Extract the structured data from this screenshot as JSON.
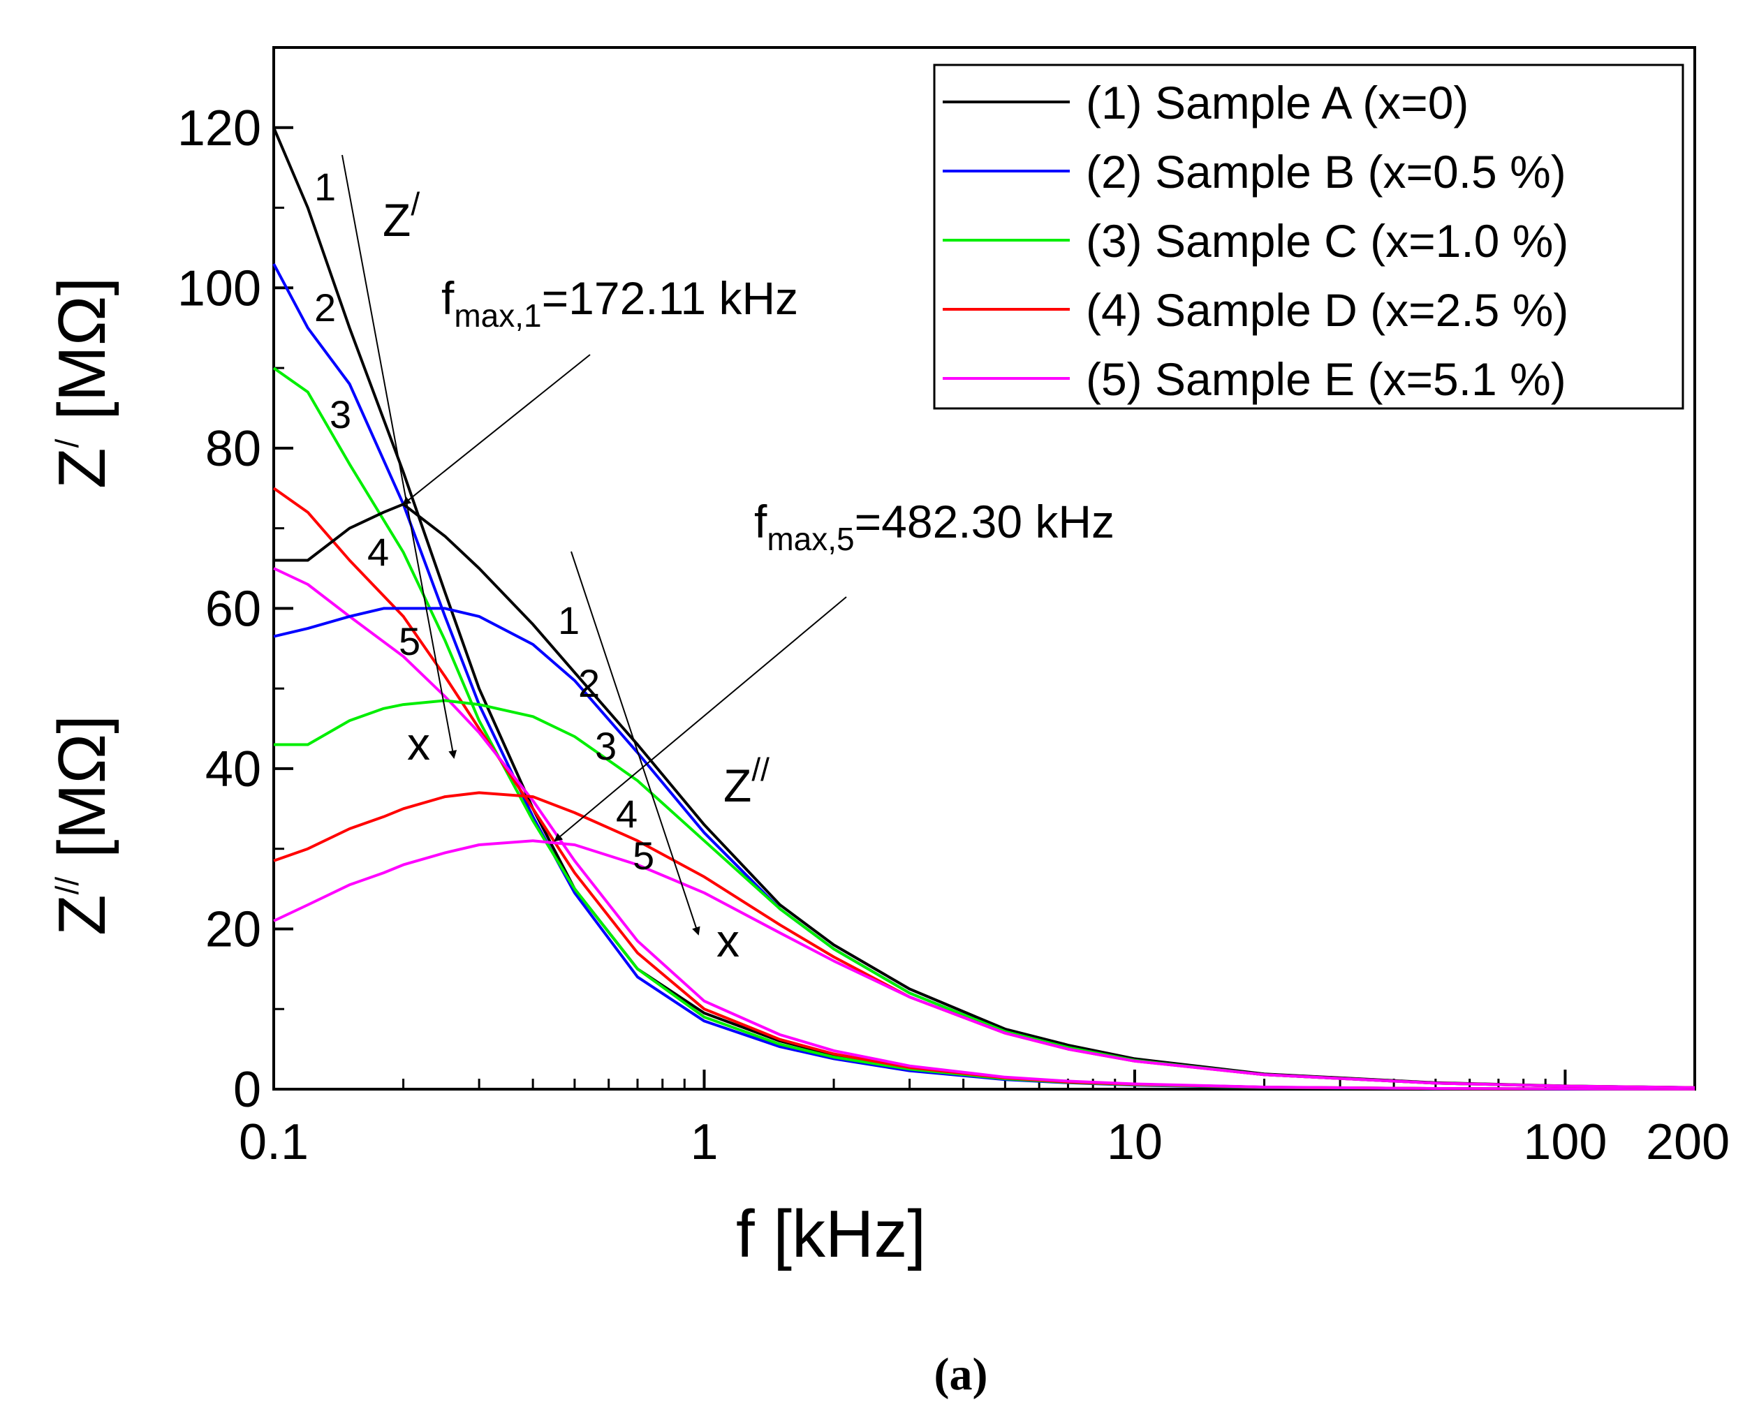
{
  "chart_data": {
    "type": "line",
    "xscale": "log",
    "xlim": [
      0.1,
      200
    ],
    "ylim": [
      0,
      130
    ],
    "xticks": [
      0.1,
      1,
      10,
      100,
      200
    ],
    "xtick_labels": [
      "0.1",
      "1",
      "10",
      "100",
      "200"
    ],
    "yticks": [
      0,
      20,
      40,
      60,
      80,
      100,
      120
    ],
    "ytick_labels": [
      "0",
      "20",
      "40",
      "60",
      "80",
      "100",
      "120"
    ],
    "xlabel": "f [kHz]",
    "ylabel_top": {
      "base": "Z",
      "sup": "/",
      "rest": " [MΩ]"
    },
    "ylabel_bottom": {
      "base": "Z",
      "sup": "//",
      "rest": " [MΩ]"
    },
    "legend_position": "top-right",
    "legend": [
      {
        "id": "A",
        "label": "(1) Sample A (x=0)",
        "color": "#000000"
      },
      {
        "id": "B",
        "label": "(2) Sample B (x=0.5 %)",
        "color": "#0000ff"
      },
      {
        "id": "C",
        "label": "(3) Sample C (x=1.0 %)",
        "color": "#00ee00"
      },
      {
        "id": "D",
        "label": "(4) Sample D (x=2.5 %)",
        "color": "#ff0000"
      },
      {
        "id": "E",
        "label": "(5) Sample E (x=5.1 %)",
        "color": "#ff00ff"
      }
    ],
    "series": [
      {
        "name": "Z' Sample A",
        "sample": "A",
        "quantity": "Z'",
        "x": [
          0.1,
          0.12,
          0.15,
          0.2,
          0.25,
          0.3,
          0.4,
          0.5,
          0.7,
          1,
          1.5,
          2,
          3,
          5,
          7,
          10,
          20,
          50,
          100,
          200
        ],
        "y": [
          120,
          110,
          95,
          77,
          62,
          50,
          35,
          25,
          15,
          9.5,
          6,
          4.3,
          2.7,
          1.4,
          0.9,
          0.6,
          0.25,
          0.08,
          0.04,
          0.02
        ]
      },
      {
        "name": "Z' Sample B",
        "sample": "B",
        "quantity": "Z'",
        "x": [
          0.1,
          0.12,
          0.15,
          0.2,
          0.25,
          0.3,
          0.4,
          0.5,
          0.7,
          1,
          1.5,
          2,
          3,
          5,
          7,
          10,
          20,
          50,
          100,
          200
        ],
        "y": [
          103,
          95,
          88,
          73,
          59,
          48,
          34,
          24.5,
          14,
          8.5,
          5.3,
          3.8,
          2.3,
          1.2,
          0.8,
          0.5,
          0.2,
          0.07,
          0.03,
          0.02
        ]
      },
      {
        "name": "Z' Sample C",
        "sample": "C",
        "quantity": "Z'",
        "x": [
          0.1,
          0.12,
          0.15,
          0.2,
          0.25,
          0.3,
          0.4,
          0.5,
          0.7,
          1,
          1.5,
          2,
          3,
          5,
          7,
          10,
          20,
          50,
          100,
          200
        ],
        "y": [
          90,
          87,
          78,
          67,
          56,
          46,
          33.5,
          25,
          15,
          9,
          5.6,
          4,
          2.5,
          1.3,
          0.85,
          0.55,
          0.22,
          0.08,
          0.04,
          0.02
        ]
      },
      {
        "name": "Z' Sample D",
        "sample": "D",
        "quantity": "Z'",
        "x": [
          0.1,
          0.12,
          0.15,
          0.2,
          0.25,
          0.3,
          0.4,
          0.5,
          0.7,
          1,
          1.5,
          2,
          3,
          5,
          7,
          10,
          20,
          50,
          100,
          200
        ],
        "y": [
          75,
          72,
          66,
          59,
          51.5,
          45,
          35,
          27,
          17,
          10,
          6.2,
          4.4,
          2.7,
          1.4,
          0.9,
          0.6,
          0.24,
          0.08,
          0.04,
          0.02
        ]
      },
      {
        "name": "Z' Sample E",
        "sample": "E",
        "quantity": "Z'",
        "x": [
          0.1,
          0.12,
          0.15,
          0.2,
          0.25,
          0.3,
          0.4,
          0.5,
          0.7,
          1,
          1.5,
          2,
          3,
          5,
          7,
          10,
          20,
          50,
          100,
          200
        ],
        "y": [
          65,
          63,
          59,
          54,
          49,
          44.5,
          36,
          28.5,
          18.5,
          11,
          6.8,
          4.8,
          2.9,
          1.5,
          1,
          0.65,
          0.26,
          0.09,
          0.04,
          0.02
        ]
      },
      {
        "name": "Z'' Sample A",
        "sample": "A",
        "quantity": "Z''",
        "x": [
          0.1,
          0.12,
          0.15,
          0.18,
          0.2,
          0.25,
          0.3,
          0.4,
          0.5,
          0.7,
          1,
          1.5,
          2,
          3,
          5,
          7,
          10,
          20,
          50,
          100,
          200
        ],
        "y": [
          66,
          66,
          70,
          72,
          73,
          69,
          65,
          58,
          52,
          43,
          33,
          23,
          18,
          12.5,
          7.5,
          5.5,
          3.8,
          1.9,
          0.8,
          0.4,
          0.2
        ]
      },
      {
        "name": "Z'' Sample B",
        "sample": "B",
        "quantity": "Z''",
        "x": [
          0.1,
          0.12,
          0.15,
          0.18,
          0.2,
          0.25,
          0.3,
          0.4,
          0.5,
          0.7,
          1,
          1.5,
          2,
          3,
          5,
          7,
          10,
          20,
          50,
          100,
          200
        ],
        "y": [
          56.5,
          57.5,
          59,
          60,
          60,
          60,
          59,
          55.5,
          51,
          42,
          32,
          22.5,
          17.5,
          12,
          7.2,
          5.2,
          3.6,
          1.8,
          0.75,
          0.38,
          0.19
        ]
      },
      {
        "name": "Z'' Sample C",
        "sample": "C",
        "quantity": "Z''",
        "x": [
          0.1,
          0.12,
          0.15,
          0.18,
          0.2,
          0.25,
          0.3,
          0.4,
          0.5,
          0.7,
          1,
          1.5,
          2,
          3,
          5,
          7,
          10,
          20,
          50,
          100,
          200
        ],
        "y": [
          43,
          43,
          46,
          47.5,
          48,
          48.5,
          48,
          46.5,
          44,
          38.5,
          31,
          22.5,
          17.5,
          12,
          7.2,
          5.2,
          3.6,
          1.8,
          0.75,
          0.38,
          0.19
        ]
      },
      {
        "name": "Z'' Sample D",
        "sample": "D",
        "quantity": "Z''",
        "x": [
          0.1,
          0.12,
          0.15,
          0.18,
          0.2,
          0.25,
          0.3,
          0.4,
          0.5,
          0.7,
          1,
          1.5,
          2,
          3,
          5,
          7,
          10,
          20,
          50,
          100,
          200
        ],
        "y": [
          28.5,
          30,
          32.5,
          34,
          35,
          36.5,
          37,
          36.5,
          34.5,
          31,
          26.5,
          20.5,
          16.5,
          11.5,
          7,
          5,
          3.5,
          1.8,
          0.75,
          0.38,
          0.19
        ]
      },
      {
        "name": "Z'' Sample E",
        "sample": "E",
        "quantity": "Z''",
        "x": [
          0.1,
          0.12,
          0.15,
          0.18,
          0.2,
          0.25,
          0.3,
          0.4,
          0.5,
          0.7,
          1,
          1.5,
          2,
          3,
          5,
          7,
          10,
          20,
          50,
          100,
          200
        ],
        "y": [
          21,
          23,
          25.5,
          27,
          28,
          29.5,
          30.5,
          31,
          30.5,
          28,
          24.5,
          19.5,
          16,
          11.5,
          7,
          5,
          3.5,
          1.8,
          0.75,
          0.38,
          0.19
        ]
      }
    ],
    "annotations": {
      "fmax1": {
        "base": "f",
        "sub": "max,1",
        "rest": "=172.11 kHz",
        "x": 0.2,
        "y": 73
      },
      "fmax5": {
        "base": "f",
        "sub": "max,5",
        "rest": "=482.30 kHz",
        "x": 0.45,
        "y": 31
      },
      "z_prime_label": {
        "base": "Z",
        "sup": "/"
      },
      "z_dprime_label": {
        "base": "Z",
        "sup": "//"
      },
      "x_arrow_label": "x",
      "curve_numbers": [
        "1",
        "2",
        "3",
        "4",
        "5"
      ]
    },
    "caption": "(a)"
  }
}
